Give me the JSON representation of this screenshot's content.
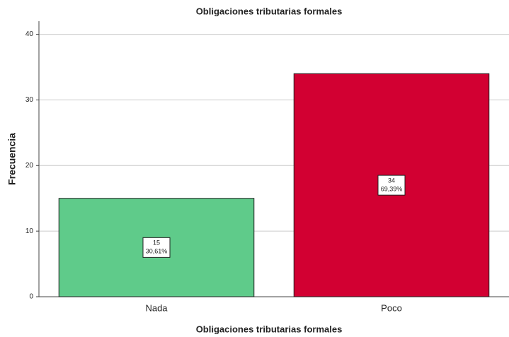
{
  "chart_data": {
    "type": "bar",
    "title": "Obligaciones tributarias formales",
    "x_label": "Obligaciones tributarias formales",
    "y_label": "Frecuencia",
    "categories": [
      "Nada",
      "Poco"
    ],
    "values": [
      15,
      34
    ],
    "percentages": [
      30.61,
      69.39
    ],
    "percentage_labels": [
      "30,61%",
      "69,39%"
    ],
    "colors": [
      "#5fcb8a",
      "#d20032"
    ],
    "ylim": [
      0,
      42
    ],
    "yticks": [
      0,
      10,
      20,
      30,
      40
    ],
    "grid": true
  }
}
